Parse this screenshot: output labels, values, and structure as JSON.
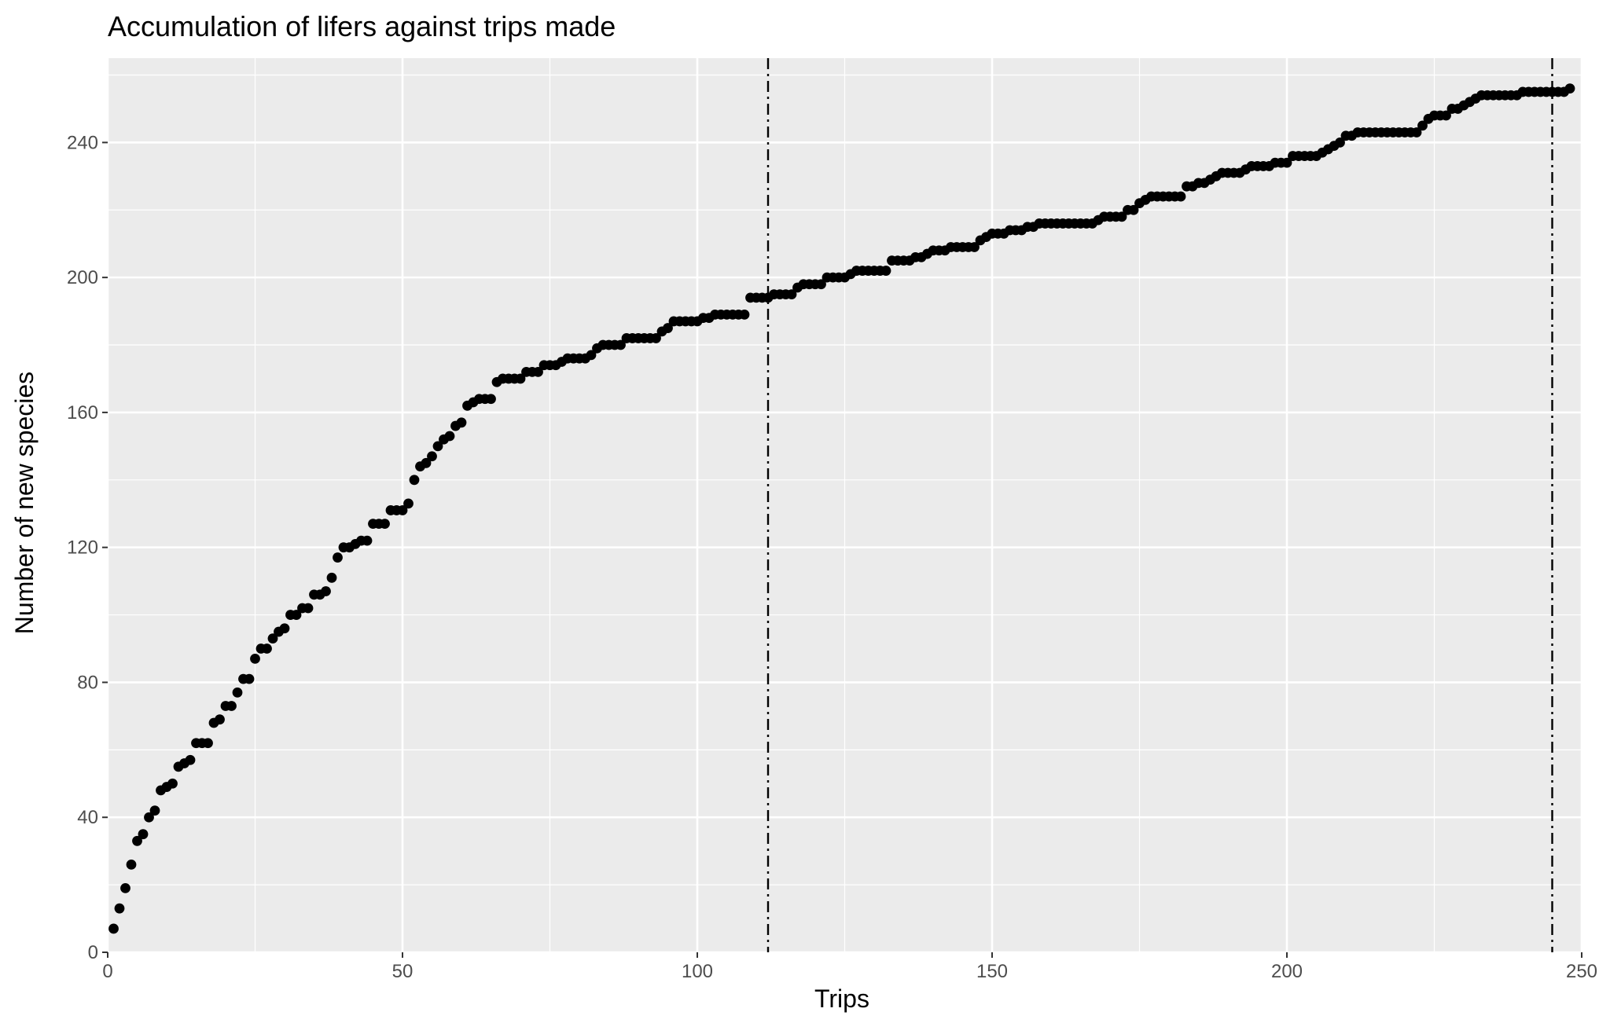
{
  "chart_data": {
    "type": "scatter",
    "title": "Accumulation of lifers against trips made",
    "xlabel": "Trips",
    "ylabel": "Number of new species",
    "xlim": [
      0,
      250
    ],
    "ylim": [
      0,
      265
    ],
    "x_ticks": [
      0,
      50,
      100,
      150,
      200,
      250
    ],
    "y_ticks": [
      0,
      40,
      80,
      120,
      160,
      200,
      240
    ],
    "grid": true,
    "panel_background": "#ebebeb",
    "gridline_color": "#ffffff",
    "point_color": "#000000",
    "reference_lines": [
      {
        "x": 112,
        "style": "dotdash"
      },
      {
        "x": 245,
        "style": "dotdash"
      }
    ],
    "y_anchors": [
      [
        1,
        7
      ],
      [
        2,
        13
      ],
      [
        3,
        19
      ],
      [
        4,
        26
      ],
      [
        5,
        33
      ],
      [
        6,
        35
      ],
      [
        7,
        40
      ],
      [
        8,
        42
      ],
      [
        9,
        48
      ],
      [
        10,
        49
      ],
      [
        11,
        50
      ],
      [
        12,
        55
      ],
      [
        13,
        56
      ],
      [
        14,
        57
      ],
      [
        15,
        62
      ],
      [
        17,
        62
      ],
      [
        18,
        68
      ],
      [
        19,
        69
      ],
      [
        20,
        73
      ],
      [
        21,
        73
      ],
      [
        22,
        77
      ],
      [
        23,
        81
      ],
      [
        24,
        81
      ],
      [
        25,
        87
      ],
      [
        26,
        90
      ],
      [
        27,
        90
      ],
      [
        28,
        93
      ],
      [
        29,
        95
      ],
      [
        30,
        96
      ],
      [
        31,
        100
      ],
      [
        32,
        100
      ],
      [
        33,
        102
      ],
      [
        34,
        102
      ],
      [
        35,
        106
      ],
      [
        36,
        106
      ],
      [
        37,
        107
      ],
      [
        38,
        111
      ],
      [
        39,
        117
      ],
      [
        40,
        120
      ],
      [
        41,
        120
      ],
      [
        42,
        121
      ],
      [
        43,
        122
      ],
      [
        44,
        122
      ],
      [
        45,
        127
      ],
      [
        47,
        127
      ],
      [
        48,
        131
      ],
      [
        50,
        131
      ],
      [
        51,
        133
      ],
      [
        52,
        140
      ],
      [
        53,
        144
      ],
      [
        54,
        145
      ],
      [
        55,
        147
      ],
      [
        56,
        150
      ],
      [
        57,
        152
      ],
      [
        58,
        153
      ],
      [
        59,
        156
      ],
      [
        60,
        157
      ],
      [
        61,
        162
      ],
      [
        62,
        163
      ],
      [
        63,
        164
      ],
      [
        65,
        164
      ],
      [
        66,
        169
      ],
      [
        67,
        170
      ],
      [
        70,
        170
      ],
      [
        71,
        172
      ],
      [
        73,
        172
      ],
      [
        74,
        174
      ],
      [
        76,
        174
      ],
      [
        77,
        175
      ],
      [
        78,
        176
      ],
      [
        81,
        176
      ],
      [
        82,
        177
      ],
      [
        83,
        179
      ],
      [
        84,
        180
      ],
      [
        87,
        180
      ],
      [
        88,
        182
      ],
      [
        93,
        182
      ],
      [
        94,
        184
      ],
      [
        95,
        185
      ],
      [
        96,
        187
      ],
      [
        100,
        187
      ],
      [
        101,
        188
      ],
      [
        102,
        188
      ],
      [
        103,
        189
      ],
      [
        108,
        189
      ],
      [
        109,
        194
      ],
      [
        112,
        194
      ],
      [
        113,
        195
      ],
      [
        116,
        195
      ],
      [
        117,
        197
      ],
      [
        118,
        198
      ],
      [
        121,
        198
      ],
      [
        122,
        200
      ],
      [
        125,
        200
      ],
      [
        126,
        201
      ],
      [
        127,
        202
      ],
      [
        132,
        202
      ],
      [
        133,
        205
      ],
      [
        136,
        205
      ],
      [
        137,
        206
      ],
      [
        139,
        207
      ],
      [
        140,
        208
      ],
      [
        142,
        208
      ],
      [
        143,
        209
      ],
      [
        147,
        209
      ],
      [
        148,
        211
      ],
      [
        149,
        212
      ],
      [
        150,
        213
      ],
      [
        152,
        213
      ],
      [
        153,
        214
      ],
      [
        155,
        214
      ],
      [
        156,
        215
      ],
      [
        158,
        216
      ],
      [
        167,
        216
      ],
      [
        168,
        217
      ],
      [
        169,
        218
      ],
      [
        172,
        218
      ],
      [
        173,
        220
      ],
      [
        174,
        220
      ],
      [
        175,
        222
      ],
      [
        176,
        223
      ],
      [
        177,
        224
      ],
      [
        182,
        224
      ],
      [
        183,
        227
      ],
      [
        184,
        227
      ],
      [
        185,
        228
      ],
      [
        186,
        228
      ],
      [
        187,
        229
      ],
      [
        188,
        230
      ],
      [
        189,
        231
      ],
      [
        192,
        231
      ],
      [
        193,
        232
      ],
      [
        194,
        233
      ],
      [
        197,
        233
      ],
      [
        198,
        234
      ],
      [
        200,
        234
      ],
      [
        201,
        236
      ],
      [
        205,
        236
      ],
      [
        206,
        237
      ],
      [
        207,
        238
      ],
      [
        208,
        239
      ],
      [
        209,
        240
      ],
      [
        210,
        242
      ],
      [
        211,
        242
      ],
      [
        212,
        243
      ],
      [
        222,
        243
      ],
      [
        223,
        245
      ],
      [
        224,
        247
      ],
      [
        225,
        248
      ],
      [
        227,
        248
      ],
      [
        228,
        250
      ],
      [
        230,
        251
      ],
      [
        231,
        252
      ],
      [
        232,
        253
      ],
      [
        233,
        254
      ],
      [
        239,
        254
      ],
      [
        240,
        255
      ],
      [
        247,
        255
      ],
      [
        248,
        256
      ]
    ]
  }
}
